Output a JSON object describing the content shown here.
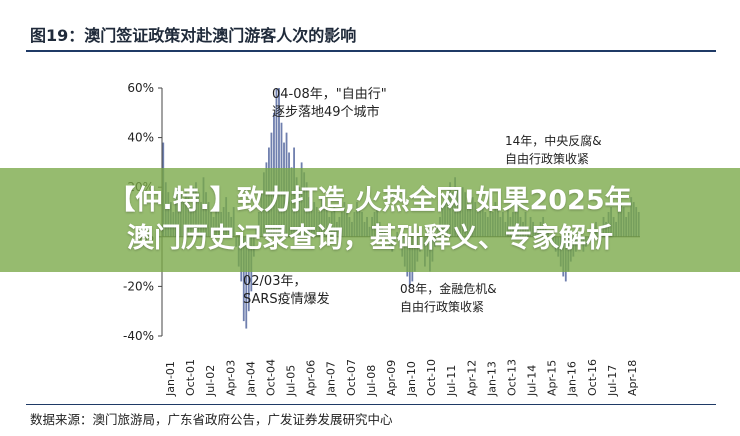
{
  "header": {
    "title": "图19：澳门签证政策对赴澳门游客人次的影响"
  },
  "footer": {
    "source": "数据来源：澳门旅游局，广东省政府公告，广发证券发展研究中心"
  },
  "overlay": {
    "line1": "【仲.特.】致力打造,火热全网!如果2025年",
    "line2": "澳门历史记录查询，基础释义、专家解析"
  },
  "colors": {
    "bar": "#6f7fae",
    "overlay": "#78a846",
    "title_rule": "#1f3a66"
  },
  "chart_data": {
    "type": "bar",
    "title": "",
    "xlabel": "",
    "ylabel": "",
    "ylim": [
      -40,
      60
    ],
    "y_ticks": [
      "60%",
      "40%",
      "20%",
      "0%",
      "-20%",
      "-40%"
    ],
    "y_tick_values": [
      60,
      40,
      20,
      0,
      -20,
      -40
    ],
    "x_tick_labels": [
      "Jan-01",
      "Oct-01",
      "Jul-02",
      "Apr-03",
      "Jan-04",
      "Oct-04",
      "Jul-05",
      "Apr-06",
      "Jan-07",
      "Oct-07",
      "Jul-08",
      "Apr-09",
      "Jan-10",
      "Oct-10",
      "Jul-11",
      "Apr-12",
      "Jan-13",
      "Oct-13",
      "Jul-14",
      "Apr-15",
      "Jan-16",
      "Oct-16",
      "Jul-17",
      "Apr-18"
    ],
    "grid": false,
    "series": [
      {
        "values": [
          38,
          22,
          18,
          14,
          10,
          16,
          20,
          17,
          14,
          18,
          16,
          12,
          20,
          22,
          18,
          14,
          24,
          18,
          14,
          10,
          8,
          12,
          14,
          10,
          12,
          16,
          10,
          8,
          12,
          -4,
          -12,
          -18,
          -34,
          -37,
          -30,
          -22,
          -8,
          4,
          10,
          18,
          26,
          30,
          36,
          42,
          50,
          60,
          60,
          46,
          38,
          42,
          34,
          28,
          36,
          24,
          20,
          30,
          26,
          22,
          16,
          18,
          14,
          12,
          10,
          16,
          14,
          12,
          8,
          10,
          12,
          6,
          8,
          10,
          14,
          10,
          8,
          6,
          10,
          14,
          12,
          10,
          6,
          8,
          4,
          8,
          10,
          12,
          6,
          4,
          2,
          0,
          -4,
          -6,
          -2,
          2,
          -4,
          -8,
          -12,
          -16,
          -20,
          -18,
          -14,
          -10,
          -6,
          -4,
          -12,
          -8,
          -14,
          -10,
          -4,
          4,
          8,
          12,
          16,
          20,
          22,
          18,
          24,
          20,
          16,
          20,
          18,
          14,
          12,
          16,
          14,
          10,
          12,
          14,
          10,
          8,
          12,
          10,
          14,
          12,
          8,
          10,
          6,
          12,
          8,
          10,
          14,
          12,
          8,
          6,
          10,
          4,
          8,
          6,
          2,
          4,
          6,
          8,
          4,
          2,
          -2,
          -4,
          -6,
          -8,
          -12,
          -16,
          -18,
          -14,
          -10,
          -8,
          -6,
          -4,
          -2,
          -6,
          -4,
          -2,
          2,
          4,
          6,
          2,
          4,
          8,
          6,
          10,
          12,
          8,
          6,
          10,
          14,
          12,
          8,
          10,
          16,
          14,
          12,
          10
        ]
      }
    ],
    "annotations": [
      {
        "text": [
          "04-08年，\"自由行\"",
          "逐步落地49个城市"
        ]
      },
      {
        "text": [
          "14年，中央反腐&",
          "自由行政策收紧"
        ]
      },
      {
        "text": [
          "02/03年，",
          "SARS疫情爆发"
        ]
      },
      {
        "text": [
          "08年，金融危机&",
          "自由行政策收紧"
        ]
      }
    ]
  }
}
